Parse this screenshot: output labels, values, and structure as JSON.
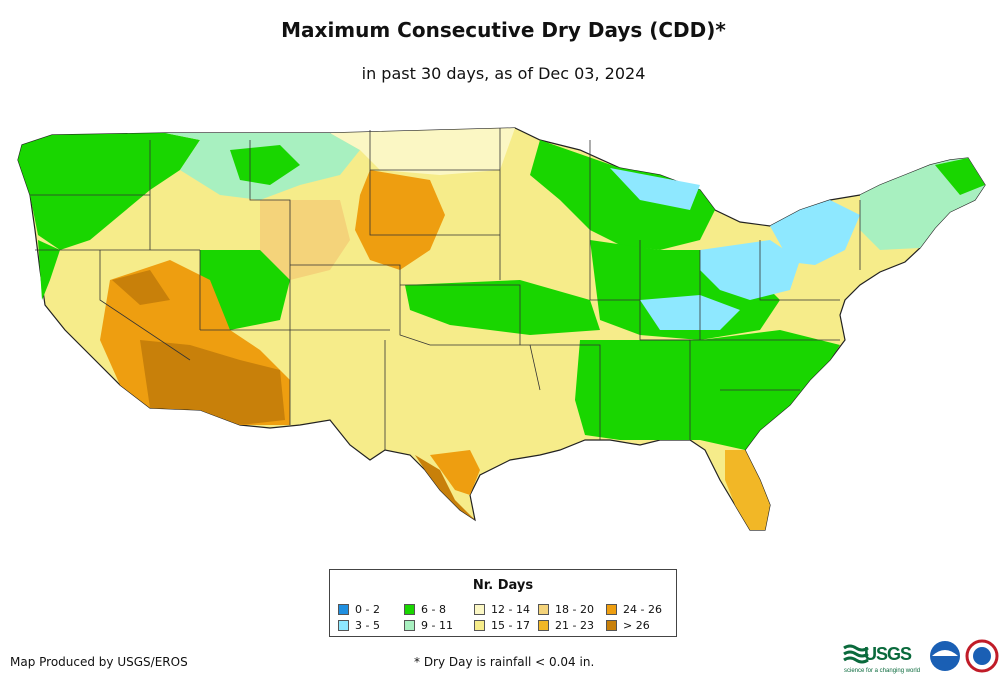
{
  "title": "Maximum Consecutive Dry Days (CDD)*",
  "subtitle": "in past 30 days, as of Dec 03, 2024",
  "legend": {
    "title": "Nr. Days",
    "items": [
      {
        "label": "0 - 2",
        "color": "#1f8fe0"
      },
      {
        "label": "3 - 5",
        "color": "#8ee8ff"
      },
      {
        "label": "6 - 8",
        "color": "#19d600"
      },
      {
        "label": "9 - 11",
        "color": "#a8f0c0"
      },
      {
        "label": "12 - 14",
        "color": "#fbf7c4"
      },
      {
        "label": "15 - 17",
        "color": "#f6ec8a"
      },
      {
        "label": "18 - 20",
        "color": "#f4d37a"
      },
      {
        "label": "21 - 23",
        "color": "#f2b726"
      },
      {
        "label": "24 - 26",
        "color": "#ee9e10"
      },
      {
        "label": "> 26",
        "color": "#c8800a"
      }
    ]
  },
  "credit": "Map Produced by USGS/EROS",
  "footnote": "* Dry Day is rainfall < 0.04 in.",
  "logos": {
    "usgs": "USGS",
    "usgs_tagline": "science for a changing world",
    "noaa": "noaa-logo",
    "nws": "nws-logo"
  }
}
